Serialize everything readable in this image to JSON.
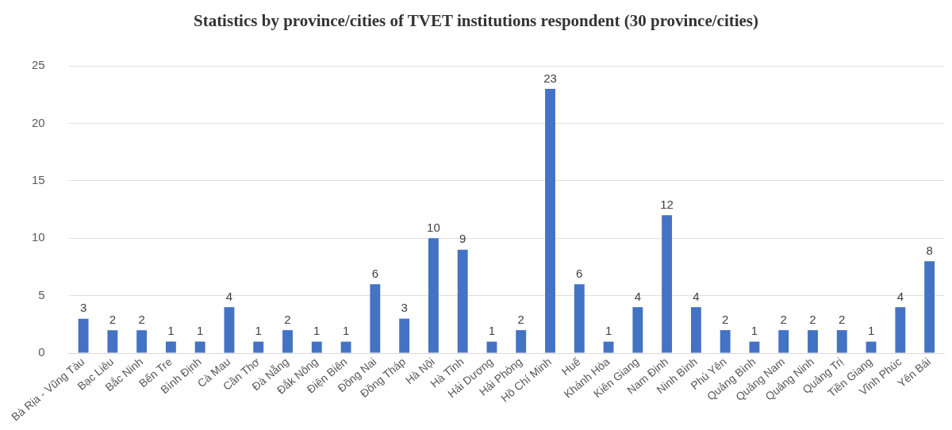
{
  "chart_data": {
    "type": "bar",
    "title": "Statistics by province/cities of TVET institutions respondent (30 province/cities)",
    "categories": [
      "Bà Rịa - Vũng Tàu",
      "Bạc Liêu",
      "Bắc Ninh",
      "Bến Tre",
      "Bình Định",
      "Cà Mau",
      "Cần Thơ",
      "Đà Nẵng",
      "Đắk Nông",
      "Điện Biên",
      "Đồng Nai",
      "Đồng Tháp",
      "Hà Nội",
      "Hà Tĩnh",
      "Hải Dương",
      "Hải Phòng",
      "Hồ Chí Minh",
      "Huế",
      "Khánh Hòa",
      "Kiên Giang",
      "Nam Định",
      "Ninh Bình",
      "Phú Yên",
      "Quảng Bình",
      "Quảng Nam",
      "Quảng Ninh",
      "Quảng Trị",
      "Tiền Giang",
      "Vĩnh Phúc",
      "Yên Bái"
    ],
    "values": [
      3,
      2,
      2,
      1,
      1,
      4,
      1,
      2,
      1,
      1,
      6,
      3,
      10,
      9,
      1,
      2,
      23,
      6,
      1,
      4,
      12,
      4,
      2,
      1,
      2,
      2,
      2,
      1,
      4,
      8
    ],
    "color": "#4472c4",
    "ylim": [
      0,
      25
    ],
    "yticks": [
      0,
      5,
      10,
      15,
      20,
      25
    ],
    "grid": "y",
    "data_labels": true
  }
}
